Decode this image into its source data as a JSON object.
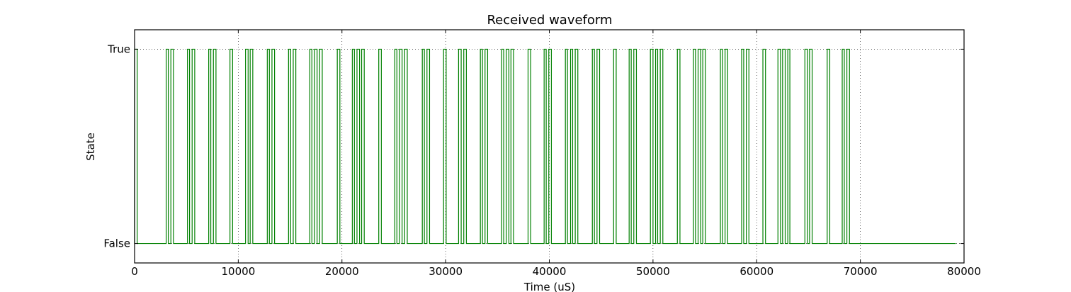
{
  "chart_data": {
    "type": "line",
    "step": true,
    "title": "Received waveform",
    "xlabel": "Time (uS)",
    "ylabel": "State",
    "xlim": [
      0,
      80000
    ],
    "ylim": [
      -0.1,
      1.1
    ],
    "grid": true,
    "x_ticks": [
      0,
      10000,
      20000,
      30000,
      40000,
      50000,
      60000,
      70000,
      80000
    ],
    "x_tick_labels": [
      "0",
      "10000",
      "20000",
      "30000",
      "40000",
      "50000",
      "60000",
      "70000",
      "80000"
    ],
    "y_ticks": [
      0,
      1
    ],
    "y_tick_labels": [
      "False",
      "True"
    ],
    "line_color": "#008000",
    "end_time": 79200,
    "pulses": [
      [
        0,
        250
      ],
      [
        3050,
        3250
      ],
      [
        3500,
        3750
      ],
      [
        5100,
        5300
      ],
      [
        5550,
        5800
      ],
      [
        7150,
        7350
      ],
      [
        7600,
        7850
      ],
      [
        9200,
        9450
      ],
      [
        10700,
        10950
      ],
      [
        11150,
        11400
      ],
      [
        12800,
        13000
      ],
      [
        13250,
        13500
      ],
      [
        14850,
        15050
      ],
      [
        15300,
        15550
      ],
      [
        16900,
        17100
      ],
      [
        17350,
        17600
      ],
      [
        17850,
        18100
      ],
      [
        19550,
        19800
      ],
      [
        21000,
        21200
      ],
      [
        21450,
        21700
      ],
      [
        21900,
        22150
      ],
      [
        23550,
        23800
      ],
      [
        25100,
        25300
      ],
      [
        25550,
        25800
      ],
      [
        26050,
        26300
      ],
      [
        27750,
        27950
      ],
      [
        28200,
        28450
      ],
      [
        29800,
        30050
      ],
      [
        31250,
        31500
      ],
      [
        31750,
        32000
      ],
      [
        33350,
        33550
      ],
      [
        33800,
        34050
      ],
      [
        35400,
        35600
      ],
      [
        35850,
        36100
      ],
      [
        36300,
        36550
      ],
      [
        37950,
        38200
      ],
      [
        39500,
        39700
      ],
      [
        39950,
        40200
      ],
      [
        41550,
        41750
      ],
      [
        42050,
        42250
      ],
      [
        42500,
        42750
      ],
      [
        44150,
        44350
      ],
      [
        44600,
        44850
      ],
      [
        46200,
        46450
      ],
      [
        47700,
        47900
      ],
      [
        48150,
        48400
      ],
      [
        49750,
        50000
      ],
      [
        50250,
        50450
      ],
      [
        50700,
        50950
      ],
      [
        52350,
        52600
      ],
      [
        53900,
        54100
      ],
      [
        54350,
        54600
      ],
      [
        54800,
        55050
      ],
      [
        56500,
        56700
      ],
      [
        56950,
        57200
      ],
      [
        58550,
        58750
      ],
      [
        59000,
        59250
      ],
      [
        60600,
        60850
      ],
      [
        62050,
        62300
      ],
      [
        62500,
        62750
      ],
      [
        63000,
        63200
      ],
      [
        64650,
        64900
      ],
      [
        65100,
        65350
      ],
      [
        66800,
        67050
      ],
      [
        68250,
        68450
      ],
      [
        68700,
        68950
      ]
    ]
  }
}
